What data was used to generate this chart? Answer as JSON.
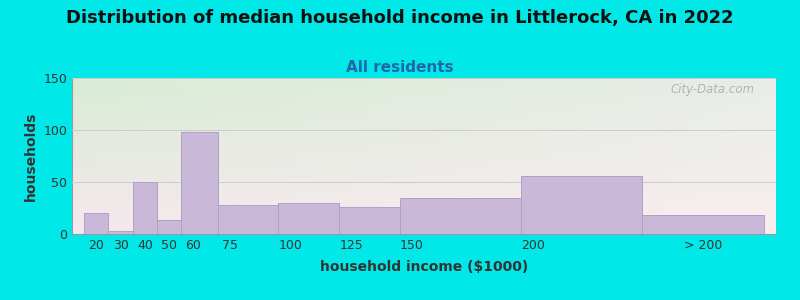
{
  "title": "Distribution of median household income in Littlerock, CA in 2022",
  "subtitle": "All residents",
  "xlabel": "household income ($1000)",
  "ylabel": "households",
  "bar_labels": [
    "20",
    "30",
    "40",
    "50",
    "60",
    "75",
    "100",
    "125",
    "150",
    "200",
    "> 200"
  ],
  "bar_values": [
    20,
    3,
    50,
    13,
    98,
    28,
    30,
    26,
    35,
    56,
    18
  ],
  "bar_lefts": [
    15,
    25,
    35,
    45,
    55,
    70,
    95,
    120,
    145,
    195,
    245
  ],
  "bar_widths": [
    10,
    10,
    10,
    10,
    15,
    25,
    25,
    25,
    50,
    50,
    50
  ],
  "bar_color": "#c9b8d8",
  "bar_edgecolor": "#b0a0c8",
  "ylim": [
    0,
    150
  ],
  "yticks": [
    0,
    50,
    100,
    150
  ],
  "xlim": [
    10,
    300
  ],
  "bg_outer": "#00e8e8",
  "bg_grad_topleft": "#d8ecd4",
  "bg_grad_topright": "#e8ede8",
  "bg_grad_bottomleft": "#f5e8ee",
  "bg_grad_bottomright": "#f8eeee",
  "grid_color": "#cccccc",
  "title_fontsize": 13,
  "subtitle_fontsize": 11,
  "subtitle_color": "#2266aa",
  "axis_label_fontsize": 10,
  "tick_fontsize": 9,
  "watermark_text": "City-Data.com",
  "watermark_color": "#aaaaaa",
  "xtick_positions": [
    20,
    30,
    40,
    50,
    60,
    75,
    100,
    125,
    150,
    200,
    270
  ],
  "xtick_labels": [
    "20",
    "30",
    "40",
    "50",
    "60",
    "75",
    "100",
    "125",
    "150",
    "200",
    "> 200"
  ]
}
